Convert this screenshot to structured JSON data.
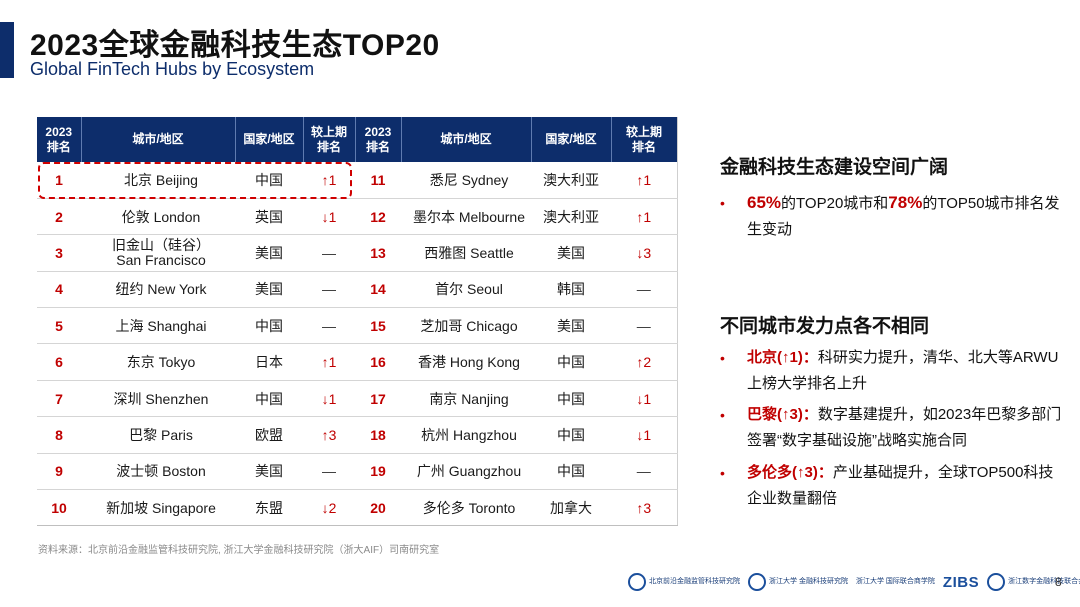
{
  "title": {
    "cn": "2023全球金融科技生态TOP20",
    "en": "Global FinTech Hubs by Ecosystem"
  },
  "table": {
    "headers": {
      "rank": "2023\n排名",
      "city": "城市/地区",
      "country": "国家/地区",
      "change": "较上期\n排名"
    },
    "rows": [
      {
        "left": {
          "rank": "1",
          "city": "北京 Beijing",
          "country": "中国",
          "change": "↑1"
        },
        "right": {
          "rank": "11",
          "city": "悉尼 Sydney",
          "country": "澳大利亚",
          "change": "↑1"
        }
      },
      {
        "left": {
          "rank": "2",
          "city": "伦敦 London",
          "country": "英国",
          "change": "↓1"
        },
        "right": {
          "rank": "12",
          "city": "墨尔本 Melbourne",
          "country": "澳大利亚",
          "change": "↑1"
        }
      },
      {
        "left": {
          "rank": "3",
          "city": "旧金山（硅谷）",
          "city_line2": "San Francisco",
          "country": "美国",
          "change": "—"
        },
        "right": {
          "rank": "13",
          "city": "西雅图 Seattle",
          "country": "美国",
          "change": "↓3"
        }
      },
      {
        "left": {
          "rank": "4",
          "city": "纽约 New York",
          "country": "美国",
          "change": "—"
        },
        "right": {
          "rank": "14",
          "city": "首尔 Seoul",
          "country": "韩国",
          "change": "—"
        }
      },
      {
        "left": {
          "rank": "5",
          "city": "上海 Shanghai",
          "country": "中国",
          "change": "—"
        },
        "right": {
          "rank": "15",
          "city": "芝加哥 Chicago",
          "country": "美国",
          "change": "—"
        }
      },
      {
        "left": {
          "rank": "6",
          "city": "东京 Tokyo",
          "country": "日本",
          "change": "↑1"
        },
        "right": {
          "rank": "16",
          "city": "香港 Hong Kong",
          "country": "中国",
          "change": "↑2"
        }
      },
      {
        "left": {
          "rank": "7",
          "city": "深圳 Shenzhen",
          "country": "中国",
          "change": "↓1"
        },
        "right": {
          "rank": "17",
          "city": "南京 Nanjing",
          "country": "中国",
          "change": "↓1"
        }
      },
      {
        "left": {
          "rank": "8",
          "city": "巴黎 Paris",
          "country": "欧盟",
          "change": "↑3"
        },
        "right": {
          "rank": "18",
          "city": "杭州 Hangzhou",
          "country": "中国",
          "change": "↓1"
        }
      },
      {
        "left": {
          "rank": "9",
          "city": "波士顿 Boston",
          "country": "美国",
          "change": "—"
        },
        "right": {
          "rank": "19",
          "city": "广州 Guangzhou",
          "country": "中国",
          "change": "—"
        }
      },
      {
        "left": {
          "rank": "10",
          "city": "新加坡 Singapore",
          "country": "东盟",
          "change": "↓2"
        },
        "right": {
          "rank": "20",
          "city": "多伦多 Toronto",
          "country": "加拿大",
          "change": "↑3"
        }
      }
    ]
  },
  "sections": {
    "s1": {
      "heading": "金融科技生态建设空间广阔",
      "pct1": "65%",
      "text1": "的TOP20城市和",
      "pct2": "78%",
      "text2": "的TOP50城市排名发生变动"
    },
    "s2": {
      "heading": "不同城市发力点各不相同",
      "bullets": [
        {
          "lead": "北京(↑1)：",
          "text": "科研实力提升，清华、北大等ARWU上榜大学排名上升"
        },
        {
          "lead": "巴黎(↑3)：",
          "text": "数字基建提升，如2023年巴黎多部门签署“数字基础设施”战略实施合同"
        },
        {
          "lead": "多伦多(↑3)：",
          "text": "产业基础提升，全球TOP500科技企业数量翻倍"
        }
      ]
    }
  },
  "source": "资料来源：北京前沿金融监管科技研究院, 浙江大学金融科技研究院（浙大AIF）司南研究室",
  "footer": {
    "logo1": "北京前沿金融监管科技研究院",
    "logo2": "浙江大学 金融科技研究院",
    "logo3": "浙江大学 国际联合商学院",
    "logo4": "ZIBS",
    "logo5": "浙江数字金融科技联合会",
    "page": "8"
  },
  "colors": {
    "accent": "#0d2d6b",
    "highlight": "#c00000"
  }
}
